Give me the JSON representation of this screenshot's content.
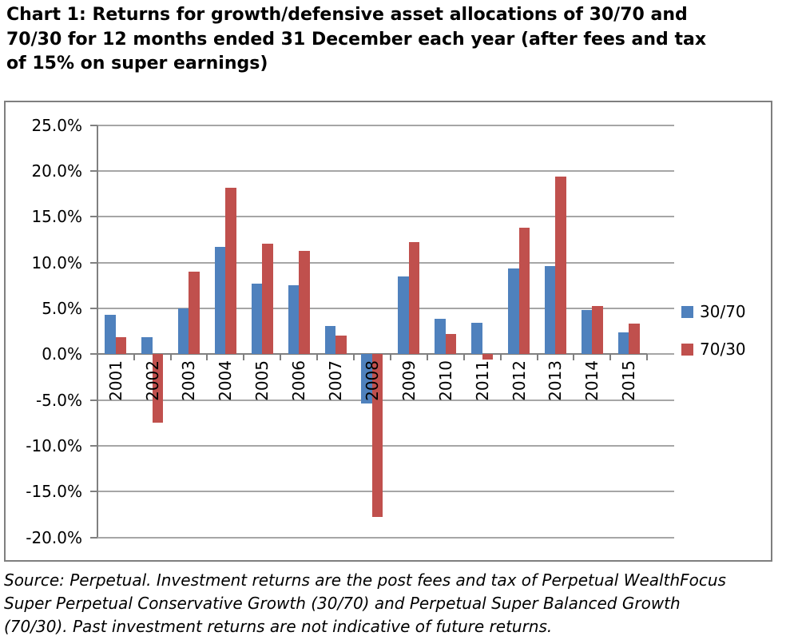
{
  "title": {
    "full": "Chart 1: Returns for growth/defensive asset allocations of 30/70 and 70/30 for 12 months ended 31 December each year (after fees and tax of 15% on super earnings)",
    "lines": [
      "Chart 1: Returns for growth/defensive asset allocations of 30/70 and",
      "70/30 for 12 months ended 31 December each year (after fees and tax",
      "of 15% on super earnings)"
    ]
  },
  "footer": {
    "full": "Source: Perpetual. Investment returns are the post fees and tax of Perpetual WealthFocus Super Perpetual Conservative Growth (30/70) and Perpetual Super Balanced Growth (70/30). Past investment returns are not indicative of future returns.",
    "lines": [
      "Source: Perpetual. Investment returns are the post fees and tax of Perpetual WealthFocus",
      "Super Perpetual Conservative Growth (30/70) and Perpetual Super Balanced Growth",
      "(70/30). Past investment returns are not indicative of future returns."
    ]
  },
  "chart_data": {
    "type": "bar",
    "title": "Chart 1: Returns for growth/defensive asset allocations of 30/70 and 70/30 for 12 months ended 31 December each year (after fees and tax of 15% on super earnings)",
    "categories": [
      "2001",
      "2002",
      "2003",
      "2004",
      "2005",
      "2006",
      "2007",
      "2008",
      "2009",
      "2010",
      "2011",
      "2012",
      "2013",
      "2014",
      "2015"
    ],
    "series": [
      {
        "name": "30/70",
        "color": "#4F81BD",
        "values": [
          4.3,
          1.9,
          5.0,
          11.7,
          7.7,
          7.5,
          3.1,
          -5.4,
          8.5,
          3.9,
          3.4,
          9.4,
          9.6,
          4.8,
          2.4
        ]
      },
      {
        "name": "70/30",
        "color": "#C0504D",
        "values": [
          1.9,
          -7.5,
          9.0,
          18.2,
          12.1,
          11.3,
          2.0,
          -17.8,
          12.2,
          2.2,
          -0.6,
          13.8,
          19.4,
          5.3,
          3.3
        ]
      }
    ],
    "xlabel": "",
    "ylabel": "",
    "y_ticks": [
      "25.0%",
      "20.0%",
      "15.0%",
      "10.0%",
      "5.0%",
      "0.0%",
      "-5.0%",
      "-10.0%",
      "-15.0%",
      "-20.0%"
    ],
    "ylim": [
      -20,
      25
    ],
    "y_step": 5,
    "unit": "percent",
    "grid": true,
    "legend_position": "right",
    "x_label_rotation": -90
  },
  "colors": {
    "series_30_70": "#4F81BD",
    "series_70_30": "#C0504D",
    "gridline": "#A6A6A6",
    "axis": "#808080",
    "frame_border": "#7F7F7F",
    "text": "#000000"
  }
}
